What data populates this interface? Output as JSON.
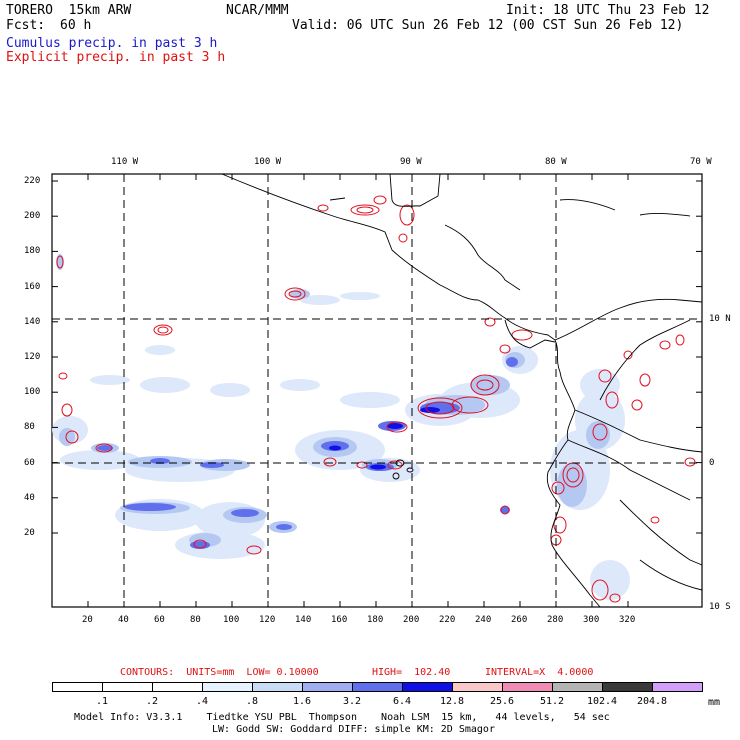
{
  "header": {
    "model": "TORERO  15km ARW",
    "center": "NCAR/MMM",
    "init": "Init: 18 UTC Thu 23 Feb 12",
    "fcst_label": "Fcst:",
    "fcst_value": "60 h",
    "valid": "Valid: 06 UTC Sun 26 Feb 12 (00 CST Sun 26 Feb 12)",
    "cumulus": "Cumulus precip. in past 3 h",
    "explicit": "Explicit precip. in past 3 h"
  },
  "colors": {
    "cumulus_text": "#1a1ac8",
    "explicit_text": "#e01010",
    "contour_line": "#e01020",
    "coast": "#000000"
  },
  "map": {
    "top_longitudes": [
      "110 W",
      "100 W",
      "90 W",
      "80 W",
      "70 W"
    ],
    "right_latitudes": [
      "10 N",
      "0",
      "10 S"
    ],
    "y_ticks": [
      "220",
      "200",
      "180",
      "160",
      "140",
      "120",
      "100",
      "80",
      "60",
      "40",
      "20"
    ],
    "x_ticks": [
      "20",
      "40",
      "60",
      "80",
      "100",
      "120",
      "140",
      "160",
      "180",
      "200",
      "220",
      "240",
      "260",
      "280",
      "300",
      "320"
    ]
  },
  "contours_line": {
    "label": "CONTOURS:  UNITS=mm  LOW= 0.10000",
    "high": "HIGH=  102.40",
    "interval": "INTERVAL=X  4.0000"
  },
  "legend": {
    "labels": [
      ".1",
      ".2",
      ".4",
      ".8",
      "1.6",
      "3.2",
      "6.4",
      "12.8",
      "25.6",
      "51.2",
      "102.4",
      "204.8"
    ],
    "colors": [
      "#ffffff",
      "#ffffff",
      "#ffffff",
      "#e6f2ff",
      "#c8dcf5",
      "#a0aef0",
      "#6070ec",
      "#1010e6",
      "#fac8c8",
      "#f08cb4",
      "#b4b4b4",
      "#3a3a3a",
      "#d2a0fa"
    ],
    "unit": "mm"
  },
  "footer": {
    "line1": "Model Info: V3.3.1    Tiedtke YSU PBL  Thompson    Noah LSM  15 km,   44 levels,   54 sec",
    "line2": "LW: Godd SW: Goddard DIFF: simple KM: 2D Smagor"
  }
}
